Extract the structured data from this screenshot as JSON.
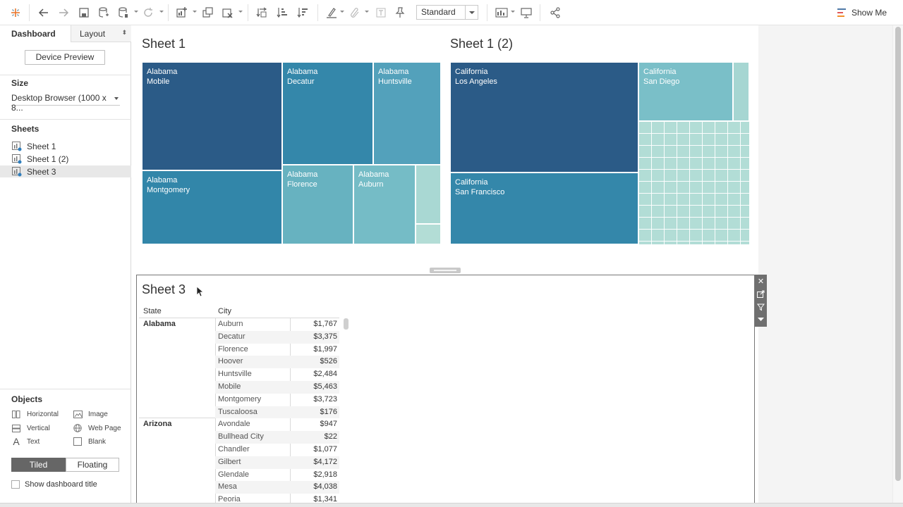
{
  "toolbar": {
    "fit_value": "Standard",
    "show_me_label": "Show Me"
  },
  "left_panel": {
    "tabs": [
      "Dashboard",
      "Layout"
    ],
    "device_preview_label": "Device Preview",
    "size": {
      "title": "Size",
      "value": "Desktop Browser (1000 x 8..."
    },
    "sheets": {
      "title": "Sheets",
      "items": [
        "Sheet 1",
        "Sheet 1 (2)",
        "Sheet 3"
      ],
      "selected_index": 2
    },
    "objects": {
      "title": "Objects",
      "items": [
        {
          "label": "Horizontal",
          "icon": "horizontal-container-icon"
        },
        {
          "label": "Image",
          "icon": "image-icon"
        },
        {
          "label": "Vertical",
          "icon": "vertical-container-icon"
        },
        {
          "label": "Web Page",
          "icon": "globe-icon"
        },
        {
          "label": "Text",
          "icon": "text-icon"
        },
        {
          "label": "Blank",
          "icon": "blank-icon"
        }
      ]
    },
    "layout_toggle": {
      "tiled": "Tiled",
      "floating": "Floating",
      "active": "Tiled"
    },
    "show_title_label": "Show dashboard title",
    "show_title_checked": false
  },
  "sheet1": {
    "title": "Sheet 1",
    "tiles": [
      {
        "label": "Alabama\nMobile",
        "color": "#2b5b87"
      },
      {
        "label": "Alabama\nDecatur",
        "color": "#3487aa"
      },
      {
        "label": "Alabama\nHuntsville",
        "color": "#53a1bb"
      },
      {
        "label": "Alabama\nMontgomery",
        "color": "#3286a9"
      },
      {
        "label": "Alabama\nFlorence",
        "color": "#67b2c0"
      },
      {
        "label": "Alabama\nAuburn",
        "color": "#75bcc6"
      }
    ]
  },
  "sheet1_2": {
    "title": "Sheet 1 (2)",
    "tiles": [
      {
        "label": "California\nLos Angeles",
        "color": "#2b5b87"
      },
      {
        "label": "California\nSan Diego",
        "color": "#7abfc8"
      },
      {
        "label": "California\nSan Francisco",
        "color": "#3487aa"
      }
    ]
  },
  "sheet3": {
    "title": "Sheet 3",
    "headers": {
      "state": "State",
      "city": "City"
    },
    "groups": [
      {
        "state": "Alabama",
        "rows": [
          {
            "city": "Auburn",
            "value": "$1,767"
          },
          {
            "city": "Decatur",
            "value": "$3,375"
          },
          {
            "city": "Florence",
            "value": "$1,997"
          },
          {
            "city": "Hoover",
            "value": "$526"
          },
          {
            "city": "Huntsville",
            "value": "$2,484"
          },
          {
            "city": "Mobile",
            "value": "$5,463"
          },
          {
            "city": "Montgomery",
            "value": "$3,723"
          },
          {
            "city": "Tuscaloosa",
            "value": "$176"
          }
        ]
      },
      {
        "state": "Arizona",
        "rows": [
          {
            "city": "Avondale",
            "value": "$947"
          },
          {
            "city": "Bullhead City",
            "value": "$22"
          },
          {
            "city": "Chandler",
            "value": "$1,077"
          },
          {
            "city": "Gilbert",
            "value": "$4,172"
          },
          {
            "city": "Glendale",
            "value": "$2,918"
          },
          {
            "city": "Mesa",
            "value": "$4,038"
          },
          {
            "city": "Peoria",
            "value": "$1,341"
          }
        ]
      }
    ]
  }
}
